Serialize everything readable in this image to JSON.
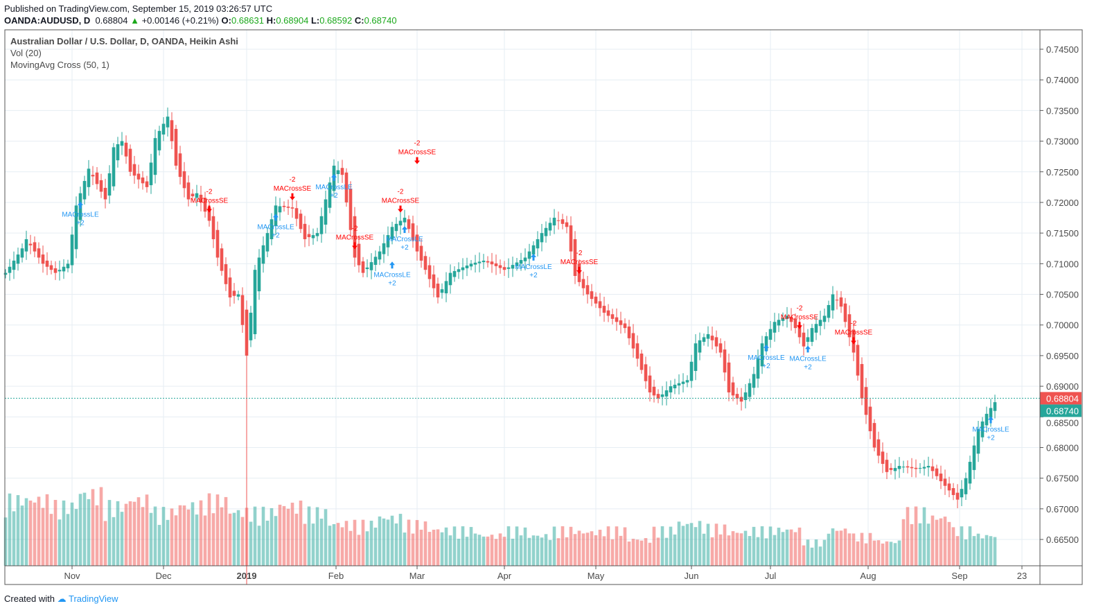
{
  "header": {
    "published": "Published on TradingView.com, September 15, 2019 03:26:57 UTC",
    "symbol": "OANDA:AUDUSD, D",
    "last": "0.68804",
    "change": "+0.00146 (+0.21%)",
    "o_label": "O:",
    "o": "0.68631",
    "h_label": "H:",
    "h": "0.68904",
    "l_label": "L:",
    "l": "0.68592",
    "c_label": "C:",
    "c": "0.68740"
  },
  "legend": {
    "title": "Australian Dollar / U.S. Dollar, D, OANDA, Heikin Ashi",
    "vol": "Vol (20)",
    "strategy": "MovingAvg Cross (50, 1)"
  },
  "footer": {
    "created": "Created with",
    "brand": "TradingView"
  },
  "colors": {
    "up": "#26a69a",
    "down": "#ef5350",
    "le": "#2196f3",
    "se": "#ff0000",
    "grid": "#e6edf3"
  },
  "chart_data": {
    "type": "candlestick",
    "title": "Australian Dollar / U.S. Dollar, D, OANDA, Heikin Ashi",
    "ylim": [
      0.6625,
      0.7475
    ],
    "price_ticks": [
      "0.74500",
      "0.74000",
      "0.73500",
      "0.73000",
      "0.72500",
      "0.72000",
      "0.71500",
      "0.71000",
      "0.70500",
      "0.70000",
      "0.69500",
      "0.69000",
      "0.68500",
      "0.68000",
      "0.67500",
      "0.67000",
      "0.66500"
    ],
    "time_ticks": [
      {
        "bar": 16,
        "label": "Nov"
      },
      {
        "bar": 38,
        "label": "Dec"
      },
      {
        "bar": 58,
        "label": "2019"
      },
      {
        "bar": 79.5,
        "label": "Feb"
      },
      {
        "bar": 99,
        "label": "Mar"
      },
      {
        "bar": 120,
        "label": "Apr"
      },
      {
        "bar": 142,
        "label": "May"
      },
      {
        "bar": 165,
        "label": "Jun"
      },
      {
        "bar": 184,
        "label": "Jul"
      },
      {
        "bar": 207.5,
        "label": "Aug"
      },
      {
        "bar": 229.5,
        "label": "Sep"
      },
      {
        "bar": 244.5,
        "label": "23"
      }
    ],
    "close_anchors": [
      [
        0,
        0.7085
      ],
      [
        4,
        0.7125
      ],
      [
        5,
        0.714
      ],
      [
        9,
        0.71
      ],
      [
        12,
        0.7085
      ],
      [
        15,
        0.71
      ],
      [
        17,
        0.7195
      ],
      [
        20,
        0.7255
      ],
      [
        24,
        0.7205
      ],
      [
        26,
        0.729
      ],
      [
        28,
        0.73
      ],
      [
        30,
        0.725
      ],
      [
        34,
        0.7225
      ],
      [
        36,
        0.7305
      ],
      [
        39,
        0.734
      ],
      [
        41,
        0.726
      ],
      [
        44,
        0.7205
      ],
      [
        46,
        0.7215
      ],
      [
        49,
        0.717
      ],
      [
        51,
        0.711
      ],
      [
        54,
        0.7045
      ],
      [
        56,
        0.705
      ],
      [
        58,
        0.695
      ],
      [
        60,
        0.709
      ],
      [
        63,
        0.715
      ],
      [
        65,
        0.7195
      ],
      [
        69,
        0.719
      ],
      [
        72,
        0.714
      ],
      [
        75,
        0.715
      ],
      [
        79,
        0.726
      ],
      [
        81,
        0.7245
      ],
      [
        84,
        0.711
      ],
      [
        86,
        0.7085
      ],
      [
        90,
        0.712
      ],
      [
        93,
        0.716
      ],
      [
        96,
        0.7175
      ],
      [
        99,
        0.712
      ],
      [
        101,
        0.709
      ],
      [
        104,
        0.7045
      ],
      [
        107,
        0.7085
      ],
      [
        112,
        0.71
      ],
      [
        115,
        0.7105
      ],
      [
        120,
        0.709
      ],
      [
        125,
        0.711
      ],
      [
        129,
        0.715
      ],
      [
        132,
        0.7175
      ],
      [
        135,
        0.716
      ],
      [
        137,
        0.708
      ],
      [
        140,
        0.705
      ],
      [
        144,
        0.702
      ],
      [
        149,
        0.6995
      ],
      [
        152,
        0.6945
      ],
      [
        155,
        0.689
      ],
      [
        157,
        0.688
      ],
      [
        160,
        0.69
      ],
      [
        164,
        0.691
      ],
      [
        166,
        0.697
      ],
      [
        169,
        0.6985
      ],
      [
        172,
        0.6955
      ],
      [
        174,
        0.689
      ],
      [
        177,
        0.6875
      ],
      [
        180,
        0.692
      ],
      [
        182,
        0.697
      ],
      [
        185,
        0.7005
      ],
      [
        188,
        0.7015
      ],
      [
        190,
        0.6995
      ],
      [
        192,
        0.6965
      ],
      [
        194,
        0.6995
      ],
      [
        197,
        0.7015
      ],
      [
        199,
        0.705
      ],
      [
        201,
        0.703
      ],
      [
        204,
        0.6955
      ],
      [
        206,
        0.688
      ],
      [
        209,
        0.68
      ],
      [
        212,
        0.676
      ],
      [
        215,
        0.677
      ],
      [
        219,
        0.6765
      ],
      [
        222,
        0.677
      ],
      [
        225,
        0.6745
      ],
      [
        229,
        0.6715
      ],
      [
        231,
        0.675
      ],
      [
        234,
        0.683
      ],
      [
        236,
        0.6855
      ],
      [
        238,
        0.6874
      ]
    ],
    "volume_blocks": [
      55,
      55,
      50,
      60,
      50,
      55,
      45,
      50,
      55,
      45,
      45,
      50,
      45,
      35,
      35,
      40,
      35,
      30,
      30,
      25,
      30,
      25,
      30,
      28,
      30,
      22,
      30,
      35,
      32,
      28,
      30,
      30,
      20,
      30,
      25,
      20,
      45,
      40,
      30,
      25
    ],
    "signals": [
      {
        "bar": 18,
        "type": "LE",
        "label": "MACrossLE",
        "qty": "+2"
      },
      {
        "bar": 49,
        "type": "SE",
        "label": "MACrossSE",
        "qty": "-2"
      },
      {
        "bar": 65,
        "type": "LE",
        "label": "MACrossLE",
        "qty": "+2"
      },
      {
        "bar": 69,
        "type": "SE",
        "label": "MACrossSE",
        "qty": "-2"
      },
      {
        "bar": 79,
        "type": "LE",
        "label": "MACrossLE",
        "qty": "+2"
      },
      {
        "bar": 84,
        "type": "SE",
        "label": "MACrossSE",
        "qty": "-2"
      },
      {
        "bar": 93,
        "type": "LE",
        "label": "MACrossLE",
        "qty": "+2"
      },
      {
        "bar": 95,
        "type": "SE",
        "label": "MACrossSE",
        "qty": "-2"
      },
      {
        "bar": 96,
        "type": "LE",
        "label": "MACrossLE",
        "qty": "+2"
      },
      {
        "bar": 99,
        "type": "SE",
        "label": "MACrossSE",
        "qty": "-2"
      },
      {
        "bar": 127,
        "type": "LE",
        "label": "MACrossLE",
        "qty": "+2"
      },
      {
        "bar": 138,
        "type": "SE",
        "label": "MACrossSE",
        "qty": "-2"
      },
      {
        "bar": 183,
        "type": "LE",
        "label": "MACrossLE",
        "qty": "+2"
      },
      {
        "bar": 191,
        "type": "SE",
        "label": "MACrossSE",
        "qty": "-2"
      },
      {
        "bar": 193,
        "type": "LE",
        "label": "MACrossLE",
        "qty": "+2"
      },
      {
        "bar": 204,
        "type": "SE",
        "label": "MACrossSE",
        "qty": "-2"
      },
      {
        "bar": 237,
        "type": "LE",
        "label": "MACrossLE",
        "qty": "+2"
      }
    ],
    "last_price": {
      "value": 0.68804,
      "label": "0.68804"
    },
    "close_price": {
      "value": 0.6874,
      "label": "0.68740"
    }
  }
}
